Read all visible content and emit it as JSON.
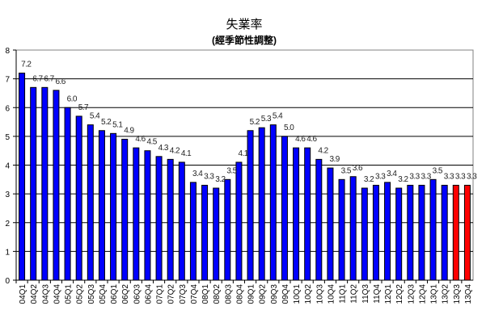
{
  "chart_data": {
    "type": "bar",
    "title": "失業率",
    "subtitle": "(經季節性調整)",
    "xlabel": "",
    "ylabel": "",
    "ylim": [
      0,
      8
    ],
    "yticks": [
      "0",
      "1",
      "2",
      "3",
      "4",
      "5",
      "6",
      "7",
      "8"
    ],
    "grid": true,
    "legend": "none",
    "colors": {
      "default": "#0000FF",
      "highlight": "#FF0000",
      "grid": "#000000",
      "border": "#808080"
    },
    "categories": [
      "04Q1",
      "04Q2",
      "04Q3",
      "04Q4",
      "05Q1",
      "05Q2",
      "05Q3",
      "05Q4",
      "06Q1",
      "06Q2",
      "06Q3",
      "06Q4",
      "07Q1",
      "07Q2",
      "07Q3",
      "07Q4",
      "08Q1",
      "08Q2",
      "08Q3",
      "08Q4",
      "09Q1",
      "09Q2",
      "09Q3",
      "09Q4",
      "10Q1",
      "10Q2",
      "10Q3",
      "10Q4",
      "11Q1",
      "11Q2",
      "11Q3",
      "11Q4",
      "12Q1",
      "12Q2",
      "12Q3",
      "12Q4",
      "13Q1",
      "13Q2",
      "13Q3",
      "13Q4"
    ],
    "values": [
      7.2,
      6.7,
      6.7,
      6.6,
      6.0,
      5.7,
      5.4,
      5.2,
      5.1,
      4.9,
      4.6,
      4.5,
      4.3,
      4.2,
      4.1,
      3.4,
      3.3,
      3.2,
      3.5,
      4.1,
      5.2,
      5.3,
      5.4,
      5.0,
      4.6,
      4.6,
      4.2,
      3.9,
      3.5,
      3.6,
      3.2,
      3.3,
      3.4,
      3.2,
      3.3,
      3.3,
      3.5,
      3.3,
      3.3,
      3.3
    ],
    "data_labels": [
      "7.2",
      "6.7",
      "6.7",
      "6.6",
      "6.0",
      "5.7",
      "5.4",
      "5.2",
      "5.1",
      "4.9",
      "4.6",
      "4.5",
      "4.3",
      "4.2",
      "4.1",
      "3.4",
      "3.3",
      "3.2",
      "3.5",
      "4.1",
      "5.2",
      "5.3",
      "5.4",
      "5.0",
      "4.6",
      "4.6",
      "4.2",
      "3.9",
      "3.5",
      "3.6",
      "3.2",
      "3.3",
      "3.4",
      "3.2",
      "3.3",
      "3.3",
      "3.5",
      "3.3",
      "3.3",
      "3.3"
    ],
    "highlighted_categories": [
      "13Q3",
      "13Q4"
    ]
  }
}
